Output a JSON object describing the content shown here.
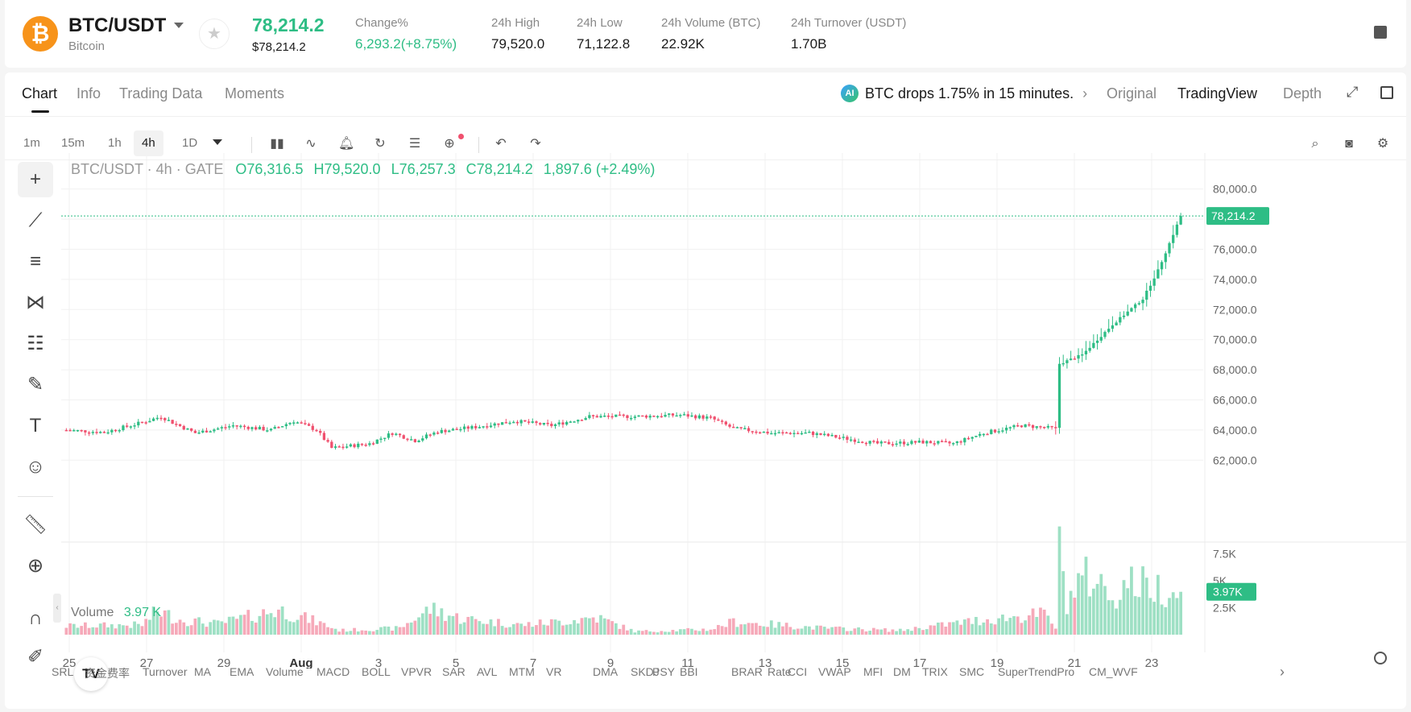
{
  "header": {
    "logo_glyph": "₿",
    "pair": "BTC/USDT",
    "pair_sub": "Bitcoin",
    "last_price": "78,214.2",
    "last_price_sub": "$78,214.2",
    "stats": [
      {
        "label": "Change%",
        "value": "6,293.2(+8.75%)",
        "up": true
      },
      {
        "label": "24h High",
        "value": "79,520.0"
      },
      {
        "label": "24h Low",
        "value": "71,122.8"
      },
      {
        "label": "24h Volume (BTC)",
        "value": "22.92K"
      },
      {
        "label": "24h Turnover (USDT)",
        "value": "1.70B"
      }
    ]
  },
  "tabs": [
    "Chart",
    "Info",
    "Trading Data",
    "Moments"
  ],
  "news": {
    "ai_badge": "AI",
    "text": "BTC drops 1.75% in 15 minutes."
  },
  "view_tabs": [
    "Original",
    "TradingView",
    "Depth"
  ],
  "timeframes": [
    "1m",
    "15m",
    "1h",
    "4h",
    "1D"
  ],
  "active_timeframe": "4h",
  "legend": {
    "symbol": "BTC/USDT · 4h · GATE",
    "o": "O76,316.5",
    "h": "H79,520.0",
    "l": "L76,257.3",
    "c": "C78,214.2",
    "chg": "1,897.6 (+2.49%)"
  },
  "volume_legend": {
    "label": "Volume",
    "value": "3.97 K"
  },
  "colors": {
    "up": "#2ebd85",
    "down": "#f0506e",
    "grid": "#f1f1f1"
  },
  "chart_data": {
    "type": "candlestick",
    "price_axis_ticks": [
      "80,000.0",
      "78,000.0",
      "76,000.0",
      "74,000.0",
      "72,000.0",
      "70,000.0",
      "68,000.0",
      "66,000.0",
      "64,000.0",
      "62,000.0"
    ],
    "price_ylim": [
      61000,
      81000
    ],
    "last_price_label": "78,214.2",
    "last_price": 78214.2,
    "volume_axis_ticks": [
      "7.5K",
      "5K",
      "2.5K"
    ],
    "volume_ylim": [
      0,
      8200
    ],
    "last_volume_label": "3.97K",
    "x_ticks": [
      "25",
      "27",
      "29",
      "Aug",
      "3",
      "5",
      "7",
      "9",
      "11",
      "13",
      "15",
      "17",
      "19",
      "21",
      "23"
    ],
    "close_anchors": [
      [
        0,
        64000
      ],
      [
        10,
        63850
      ],
      [
        20,
        64500
      ],
      [
        25,
        64900
      ],
      [
        28,
        64500
      ],
      [
        34,
        63800
      ],
      [
        44,
        64300
      ],
      [
        54,
        64000
      ],
      [
        60,
        64600
      ],
      [
        66,
        64000
      ],
      [
        70,
        62800
      ],
      [
        80,
        63100
      ],
      [
        86,
        63800
      ],
      [
        92,
        63300
      ],
      [
        98,
        63900
      ],
      [
        108,
        64200
      ],
      [
        118,
        64600
      ],
      [
        128,
        64300
      ],
      [
        138,
        64900
      ],
      [
        150,
        64900
      ],
      [
        162,
        65000
      ],
      [
        170,
        64800
      ],
      [
        176,
        64100
      ],
      [
        186,
        63800
      ],
      [
        196,
        63800
      ],
      [
        204,
        63500
      ],
      [
        214,
        63100
      ],
      [
        226,
        63200
      ],
      [
        234,
        63100
      ],
      [
        242,
        63800
      ],
      [
        252,
        64300
      ],
      [
        261,
        64100
      ],
      [
        262,
        68400
      ],
      [
        268,
        69000
      ],
      [
        276,
        71000
      ],
      [
        284,
        72700
      ],
      [
        288,
        74600
      ],
      [
        292,
        77000
      ],
      [
        294,
        78214.2
      ]
    ],
    "volume_anchors": [
      [
        0,
        800
      ],
      [
        20,
        900
      ],
      [
        24,
        2200
      ],
      [
        30,
        1400
      ],
      [
        40,
        1000
      ],
      [
        56,
        2300
      ],
      [
        66,
        1200
      ],
      [
        72,
        400
      ],
      [
        88,
        600
      ],
      [
        96,
        2400
      ],
      [
        104,
        1500
      ],
      [
        120,
        900
      ],
      [
        130,
        1200
      ],
      [
        140,
        1600
      ],
      [
        150,
        300
      ],
      [
        170,
        500
      ],
      [
        176,
        1200
      ],
      [
        200,
        600
      ],
      [
        220,
        400
      ],
      [
        240,
        1300
      ],
      [
        258,
        1900
      ],
      [
        261,
        700
      ],
      [
        262,
        7500
      ],
      [
        264,
        3100
      ],
      [
        268,
        5300
      ],
      [
        272,
        5000
      ],
      [
        276,
        3500
      ],
      [
        280,
        4900
      ],
      [
        286,
        4500
      ],
      [
        294,
        3970
      ]
    ],
    "series": [
      {
        "name": "BTC/USDT"
      },
      {
        "name": "Volume"
      }
    ]
  },
  "indicators": [
    "SRL",
    "资金费率",
    "Turnover",
    "MA",
    "EMA",
    "Volume",
    "MACD",
    "BOLL",
    "VPVR",
    "SAR",
    "AVL",
    "MTM",
    "VR",
    "DMA",
    "SKDJ",
    "PSY",
    "BBI",
    "BRAR",
    "Rate",
    "CCI",
    "VWAP",
    "MFI",
    "DM",
    "TRIX",
    "SMC",
    "SuperTrendPro",
    "CM_WVF"
  ],
  "tv_badge": "TV"
}
